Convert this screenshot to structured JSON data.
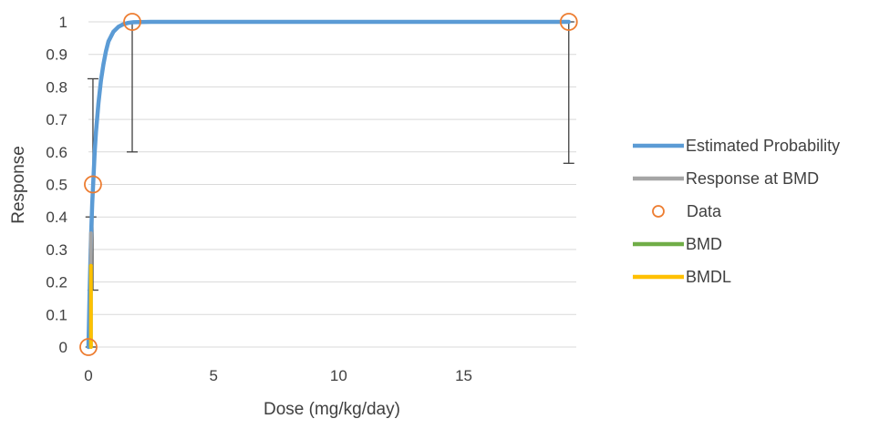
{
  "chart_data": {
    "type": "line",
    "title": "",
    "xlabel": "Dose (mg/kg/day)",
    "ylabel": "Response",
    "xlim": [
      0,
      19.5
    ],
    "ylim": [
      0,
      1
    ],
    "x_ticks": [
      0,
      5,
      10,
      15
    ],
    "y_ticks": [
      0,
      0.1,
      0.2,
      0.3,
      0.4,
      0.5,
      0.6,
      0.7,
      0.8,
      0.9,
      1
    ],
    "grid": "horizontal",
    "legend_position": "right",
    "series": [
      {
        "name": "Estimated Probability",
        "kind": "line",
        "color": "#5B9BD5",
        "x": [
          0,
          0.05,
          0.1,
          0.15,
          0.2,
          0.25,
          0.3,
          0.4,
          0.5,
          0.6,
          0.7,
          0.8,
          1.0,
          1.2,
          1.4,
          1.6,
          1.8,
          2.5,
          5,
          10,
          15,
          19.2
        ],
        "y": [
          0,
          0.18,
          0.33,
          0.44,
          0.52,
          0.6,
          0.66,
          0.75,
          0.82,
          0.87,
          0.91,
          0.94,
          0.97,
          0.985,
          0.993,
          0.997,
          0.999,
          1,
          1,
          1,
          1,
          1
        ]
      },
      {
        "name": "Response at BMD",
        "kind": "line",
        "color": "#A5A5A5",
        "x": [
          0.1,
          0.1
        ],
        "y": [
          0.25,
          0.35
        ]
      },
      {
        "name": "Data",
        "kind": "marker",
        "color": "#ED7D31",
        "x": [
          0,
          0.18,
          1.75,
          19.2
        ],
        "y": [
          0,
          0.5,
          1,
          1
        ],
        "error_low": [
          0,
          0.175,
          0.6,
          0.565
        ],
        "error_high": [
          0,
          0.825,
          1,
          1
        ]
      },
      {
        "name": "BMD",
        "kind": "line",
        "color": "#70AD47",
        "x": [
          0.1,
          0.1
        ],
        "y": [
          0,
          0.25
        ]
      },
      {
        "name": "BMDL",
        "kind": "line",
        "color": "#FFC000",
        "x": [
          0.1,
          0.1
        ],
        "y": [
          0,
          0.25
        ]
      }
    ],
    "extra_error_bars": [
      {
        "x": 0.1,
        "low": 0,
        "high": 0.4
      }
    ]
  }
}
